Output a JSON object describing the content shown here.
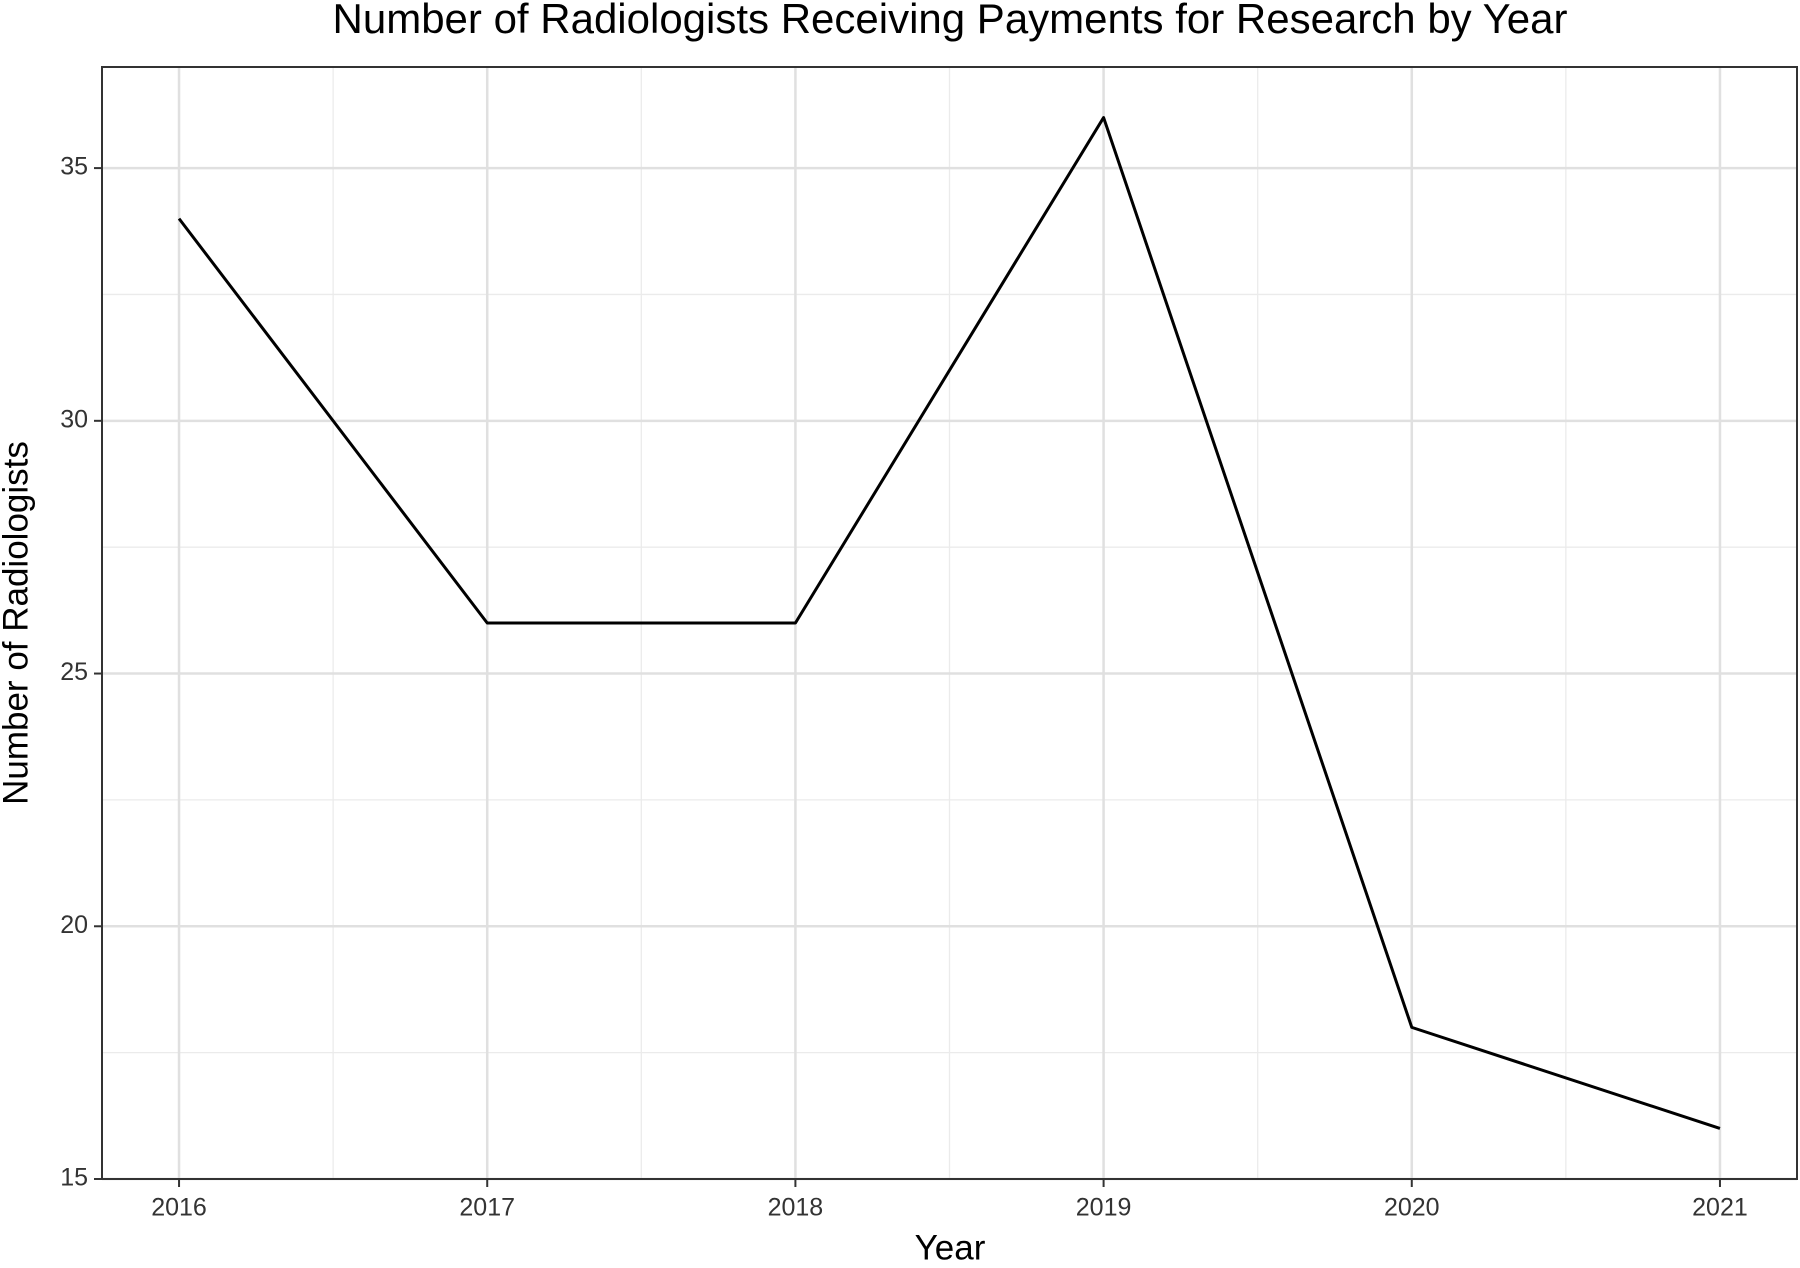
{
  "chart_data": {
    "type": "line",
    "title": "Number of Radiologists Receiving Payments for Research by Year",
    "x_label": "Year",
    "y_label": "Number of Radiologists",
    "x": [
      2016,
      2017,
      2018,
      2019,
      2020,
      2021
    ],
    "series": [
      {
        "color": "#000000",
        "values": [
          34,
          26,
          26,
          36,
          18,
          16
        ]
      }
    ],
    "xlim": [
      2015.75,
      2021.25
    ],
    "xticks": [
      2016,
      2017,
      2018,
      2019,
      2020,
      2021
    ],
    "ylim": [
      15,
      37
    ],
    "yticks": [
      15,
      20,
      25,
      30,
      35
    ],
    "grid": true
  }
}
